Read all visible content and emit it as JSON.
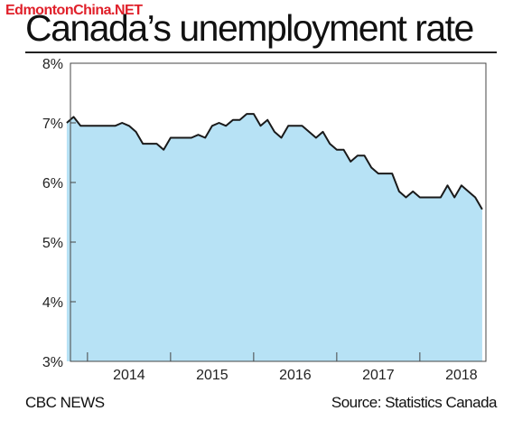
{
  "watermark": "EdmontonChina.NET",
  "title": "Canada’s unemployment rate",
  "footer": {
    "left": "CBC NEWS",
    "right": "Source: Statistics Canada"
  },
  "colors": {
    "fill": "#b7e2f5",
    "line": "#1a1a1a",
    "border": "#444444"
  },
  "chart_data": {
    "type": "area",
    "title": "Canada’s unemployment rate",
    "ylim": [
      3,
      8
    ],
    "xlim": [
      2013.42,
      2018.42
    ],
    "y_ticks": [
      {
        "value": 3,
        "label": "3%"
      },
      {
        "value": 4,
        "label": "4%"
      },
      {
        "value": 5,
        "label": "5%"
      },
      {
        "value": 6,
        "label": "6%"
      },
      {
        "value": 7,
        "label": "7%"
      },
      {
        "value": 8,
        "label": "8%"
      }
    ],
    "x_ticks": [
      {
        "value": 2013.625,
        "label": ""
      },
      {
        "value": 2014.625,
        "label": ""
      },
      {
        "value": 2015.625,
        "label": ""
      },
      {
        "value": 2016.625,
        "label": ""
      },
      {
        "value": 2017.625,
        "label": ""
      }
    ],
    "x_labels": [
      {
        "value": 2014.125,
        "label": "2014"
      },
      {
        "value": 2015.125,
        "label": "2015"
      },
      {
        "value": 2016.125,
        "label": "2016"
      },
      {
        "value": 2017.125,
        "label": "2017"
      },
      {
        "value": 2018.125,
        "label": "2018"
      }
    ],
    "grid": false,
    "series": [
      {
        "x": [
          2013.375,
          2013.458,
          2013.542,
          2013.625,
          2013.708,
          2013.792,
          2013.875,
          2013.958,
          2014.042,
          2014.125,
          2014.208,
          2014.292,
          2014.375,
          2014.458,
          2014.542,
          2014.625,
          2014.708,
          2014.792,
          2014.875,
          2014.958,
          2015.042,
          2015.125,
          2015.208,
          2015.292,
          2015.375,
          2015.458,
          2015.542,
          2015.625,
          2015.708,
          2015.792,
          2015.875,
          2015.958,
          2016.042,
          2016.125,
          2016.208,
          2016.292,
          2016.375,
          2016.458,
          2016.542,
          2016.625,
          2016.708,
          2016.792,
          2016.875,
          2016.958,
          2017.042,
          2017.125,
          2017.208,
          2017.292,
          2017.375,
          2017.458,
          2017.542,
          2017.625,
          2017.708,
          2017.792,
          2017.875,
          2017.958,
          2018.042,
          2018.125,
          2018.208,
          2018.292,
          2018.375
        ],
        "values": [
          7.0,
          7.1,
          6.95,
          6.95,
          6.95,
          6.95,
          6.95,
          6.95,
          7.0,
          6.95,
          6.85,
          6.65,
          6.65,
          6.65,
          6.55,
          6.75,
          6.75,
          6.75,
          6.75,
          6.8,
          6.75,
          6.95,
          7.0,
          6.95,
          7.05,
          7.05,
          7.15,
          7.15,
          6.95,
          7.05,
          6.85,
          6.75,
          6.95,
          6.95,
          6.95,
          6.85,
          6.75,
          6.85,
          6.65,
          6.55,
          6.55,
          6.35,
          6.45,
          6.45,
          6.25,
          6.15,
          6.15,
          6.15,
          5.85,
          5.75,
          5.85,
          5.75,
          5.75,
          5.75,
          5.75,
          5.95,
          5.75,
          5.95,
          5.85,
          5.75,
          5.55
        ]
      }
    ]
  }
}
